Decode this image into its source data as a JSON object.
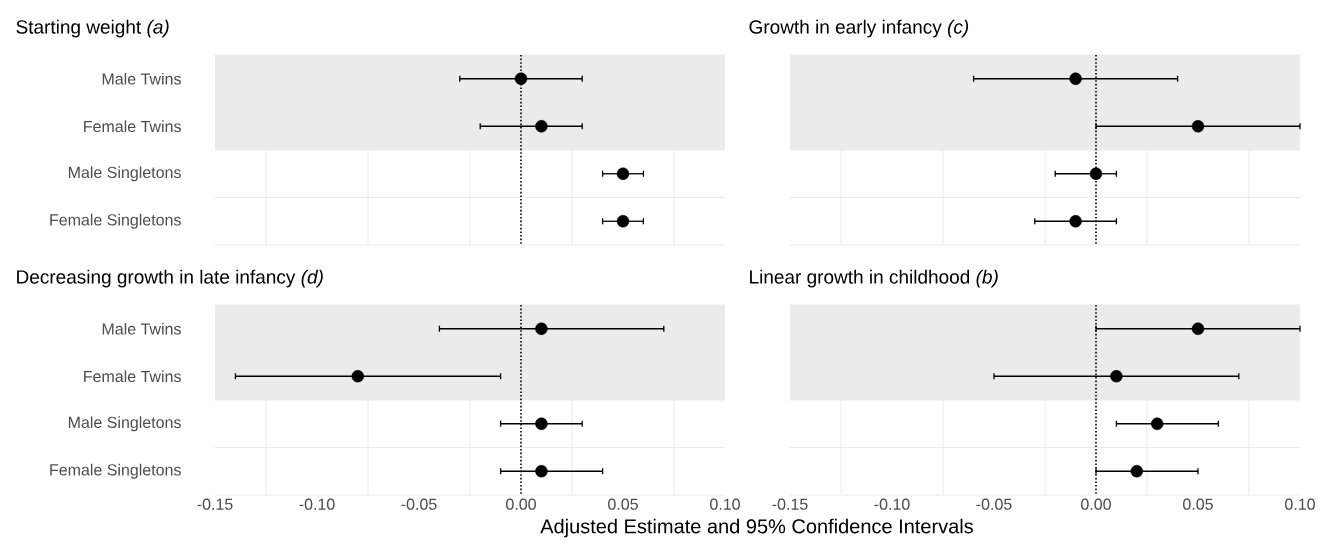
{
  "chart_data": [
    {
      "type": "scatter",
      "orientation": "horizontal",
      "title": "Starting weight *(a)*",
      "categories": [
        "Male Twins",
        "Female Twins",
        "Male Singletons",
        "Female Singletons"
      ],
      "values": [
        0.0,
        0.01,
        0.05,
        0.05
      ],
      "errors": [
        [
          -0.03,
          0.03
        ],
        [
          -0.02,
          0.03
        ],
        [
          0.04,
          0.06
        ],
        [
          0.04,
          0.06
        ]
      ],
      "color": "#000000",
      "xlim": [
        -0.15,
        0.1
      ],
      "xticks": [
        -0.15,
        -0.1,
        -0.05,
        0,
        0.05,
        0.1
      ],
      "grid": true,
      "tick_labels": "y",
      "ref_lines": [
        {
          "axis": "x",
          "value": 0,
          "line_style": "dotted",
          "color": "#000000"
        }
      ],
      "bands": [
        {
          "axis": "y",
          "from": "Male Twins",
          "to": "Female Twins",
          "color": "#ebebeb"
        }
      ]
    },
    {
      "type": "scatter",
      "orientation": "horizontal",
      "title": "Growth in early infancy *(c)*",
      "categories": [
        "Male Twins",
        "Female Twins",
        "Male Singletons",
        "Female Singletons"
      ],
      "values": [
        -0.01,
        0.05,
        0.0,
        -0.01
      ],
      "errors": [
        [
          -0.06,
          0.04
        ],
        [
          0.0,
          0.1
        ],
        [
          -0.02,
          0.01
        ],
        [
          -0.03,
          0.01
        ]
      ],
      "color": "#000000",
      "xlim": [
        -0.15,
        0.1
      ],
      "xticks": [
        -0.15,
        -0.1,
        -0.05,
        0,
        0.05,
        0.1
      ],
      "grid": true,
      "tick_labels": false,
      "ref_lines": [
        {
          "axis": "x",
          "value": 0,
          "line_style": "dotted",
          "color": "#000000"
        }
      ],
      "bands": [
        {
          "axis": "y",
          "from": "Male Twins",
          "to": "Female Twins",
          "color": "#ebebeb"
        }
      ]
    },
    {
      "type": "scatter",
      "orientation": "horizontal",
      "title": "Decreasing growth in late infancy *(d)*",
      "xlabel": "Adjusted Estimate and 95% Confidence Intervals",
      "categories": [
        "Male Twins",
        "Female Twins",
        "Male Singletons",
        "Female Singletons"
      ],
      "values": [
        0.01,
        -0.08,
        0.01,
        0.01
      ],
      "errors": [
        [
          -0.04,
          0.07
        ],
        [
          -0.14,
          -0.01
        ],
        [
          -0.01,
          0.03
        ],
        [
          -0.01,
          0.04
        ]
      ],
      "color": "#000000",
      "xlim": [
        -0.15,
        0.1
      ],
      "xticks": [
        {
          "value": -0.15,
          "label": "-0.15"
        },
        {
          "value": -0.1,
          "label": "-0.10"
        },
        {
          "value": -0.05,
          "label": "-0.05"
        },
        {
          "value": 0,
          "label": "0.00"
        },
        {
          "value": 0.05,
          "label": "0.05"
        },
        {
          "value": 0.1,
          "label": "0.10"
        }
      ],
      "grid": true,
      "ref_lines": [
        {
          "axis": "x",
          "value": 0,
          "line_style": "dotted",
          "color": "#000000"
        }
      ],
      "bands": [
        {
          "axis": "y",
          "from": "Male Twins",
          "to": "Female Twins",
          "color": "#ebebeb"
        }
      ]
    },
    {
      "type": "scatter",
      "orientation": "horizontal",
      "title": "Linear growth in childhood *(b)*",
      "categories": [
        "Male Twins",
        "Female Twins",
        "Male Singletons",
        "Female Singletons"
      ],
      "values": [
        0.05,
        0.01,
        0.03,
        0.02
      ],
      "errors": [
        [
          0.0,
          0.1
        ],
        [
          -0.05,
          0.07
        ],
        [
          0.01,
          0.06
        ],
        [
          0.0,
          0.05
        ]
      ],
      "color": "#000000",
      "xlim": [
        -0.15,
        0.1
      ],
      "xticks": [
        {
          "value": -0.15,
          "label": "-0.15"
        },
        {
          "value": -0.1,
          "label": "-0.10"
        },
        {
          "value": -0.05,
          "label": "-0.05"
        },
        {
          "value": 0,
          "label": "0.00"
        },
        {
          "value": 0.05,
          "label": "0.05"
        },
        {
          "value": 0.1,
          "label": "0.10"
        }
      ],
      "grid": true,
      "tick_labels": "x",
      "ref_lines": [
        {
          "axis": "x",
          "value": 0,
          "line_style": "dotted",
          "color": "#000000"
        }
      ],
      "bands": [
        {
          "axis": "y",
          "from": "Male Twins",
          "to": "Female Twins",
          "color": "#ebebeb"
        }
      ]
    }
  ]
}
